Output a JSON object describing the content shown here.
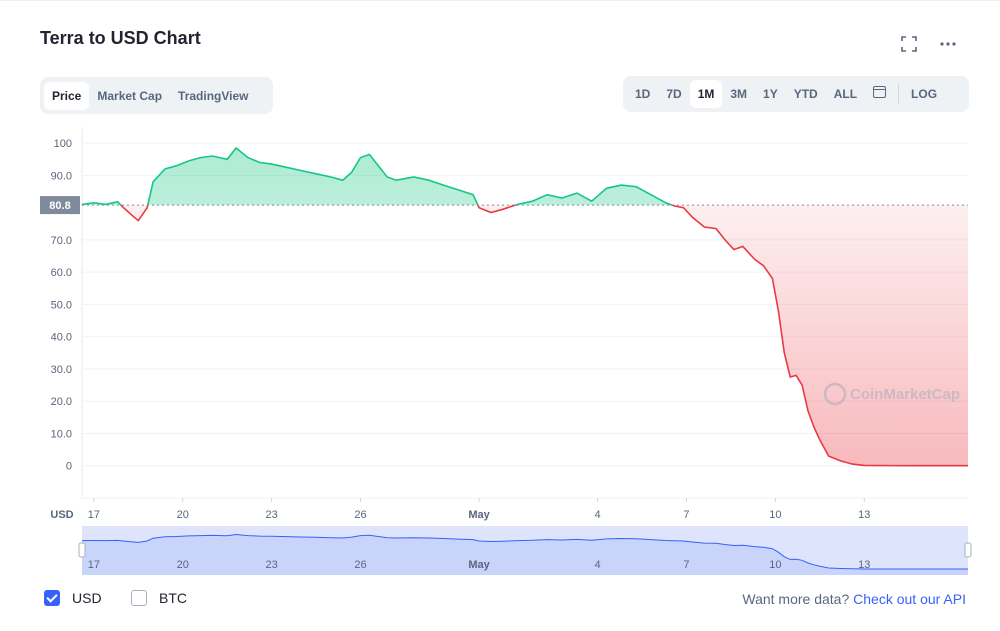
{
  "title": "Terra to USD Chart",
  "header_icons": {
    "fullscreen": "fullscreen-icon",
    "more": "more-horizontal-icon"
  },
  "view_tabs": [
    {
      "label": "Price",
      "active": true
    },
    {
      "label": "Market Cap",
      "active": false
    },
    {
      "label": "TradingView",
      "active": false
    }
  ],
  "range_tabs": [
    {
      "label": "1D",
      "active": false
    },
    {
      "label": "7D",
      "active": false
    },
    {
      "label": "1M",
      "active": true
    },
    {
      "label": "3M",
      "active": false
    },
    {
      "label": "1Y",
      "active": false
    },
    {
      "label": "YTD",
      "active": false
    },
    {
      "label": "ALL",
      "active": false
    }
  ],
  "calendar_icon": "calendar-icon",
  "log_label": "LOG",
  "colors": {
    "up": "#16c784",
    "down": "#ea3943",
    "accent": "#3861fb",
    "current_tag": "#808a9d"
  },
  "watermark": "CoinMarketCap",
  "chart_data": {
    "type": "line",
    "title": "Terra to USD Chart",
    "currency_label": "USD",
    "ylim": [
      -10,
      105
    ],
    "yticks": [
      100,
      90,
      80.8,
      70,
      60,
      50,
      40,
      30,
      20,
      10,
      0
    ],
    "ytick_labels": [
      "100",
      "90.0",
      "80.8",
      "70.0",
      "60.0",
      "50.0",
      "40.0",
      "30.0",
      "20.0",
      "10.0",
      "0"
    ],
    "reference_price": 80.8,
    "x_tick_labels": [
      "17",
      "20",
      "23",
      "26",
      "May",
      "4",
      "7",
      "10",
      "13"
    ],
    "x_tick_days": [
      17,
      20,
      23,
      26,
      30,
      34,
      37,
      40,
      43
    ],
    "x_range_days": [
      16.6,
      46.5
    ],
    "series": [
      {
        "x": [
          16.6,
          17.0,
          17.4,
          17.8,
          18.0,
          18.3,
          18.5,
          18.8,
          19.0,
          19.4,
          19.8,
          20.2,
          20.6,
          21.0,
          21.5,
          21.8,
          22.2,
          22.6,
          23.0,
          23.5,
          24.0,
          24.5,
          25.0,
          25.4,
          25.7,
          26.0,
          26.3,
          26.6,
          26.9,
          27.2,
          27.8,
          28.3,
          28.8,
          29.3,
          29.8,
          30.0,
          30.4,
          30.8,
          31.3,
          31.8,
          32.3,
          32.8,
          33.3,
          33.8,
          34.3,
          34.8,
          35.3,
          35.8,
          36.3,
          36.6,
          36.9,
          37.2,
          37.6,
          38.0,
          38.3,
          38.6,
          38.9,
          39.3,
          39.6,
          39.9,
          40.1,
          40.3,
          40.5,
          40.7,
          40.9,
          41.1,
          41.3,
          41.5,
          41.8,
          42.2,
          42.6,
          43.0,
          43.5,
          44.5,
          45.5,
          46.5
        ],
        "y": [
          81.0,
          81.5,
          81.0,
          81.8,
          80.0,
          77.5,
          76.0,
          80.0,
          88.0,
          92.0,
          93.0,
          94.5,
          95.5,
          96.0,
          95.0,
          98.5,
          95.5,
          94.0,
          93.5,
          92.5,
          91.5,
          90.5,
          89.5,
          88.5,
          91.0,
          95.5,
          96.5,
          93.0,
          89.5,
          88.5,
          89.5,
          88.5,
          87.0,
          85.5,
          84.0,
          80.0,
          78.5,
          79.5,
          81.0,
          82.0,
          84.0,
          83.0,
          84.5,
          82.0,
          86.0,
          87.0,
          86.5,
          84.0,
          81.5,
          80.5,
          80.0,
          77.0,
          74.0,
          73.5,
          70.0,
          67.0,
          68.0,
          64.0,
          62.0,
          58.0,
          48.0,
          35.0,
          27.5,
          28.0,
          25.0,
          17.0,
          12.0,
          8.0,
          3.0,
          1.5,
          0.5,
          0.1,
          0.05,
          0.02,
          0.01,
          0.01
        ]
      }
    ],
    "navigator": {
      "x_tick_labels": [
        "17",
        "20",
        "23",
        "26",
        "May",
        "4",
        "7",
        "10",
        "13"
      ]
    }
  },
  "legend": [
    {
      "label": "USD",
      "checked": true
    },
    {
      "label": "BTC",
      "checked": false
    }
  ],
  "api_prompt": "Want more data?",
  "api_link": "Check out our API"
}
